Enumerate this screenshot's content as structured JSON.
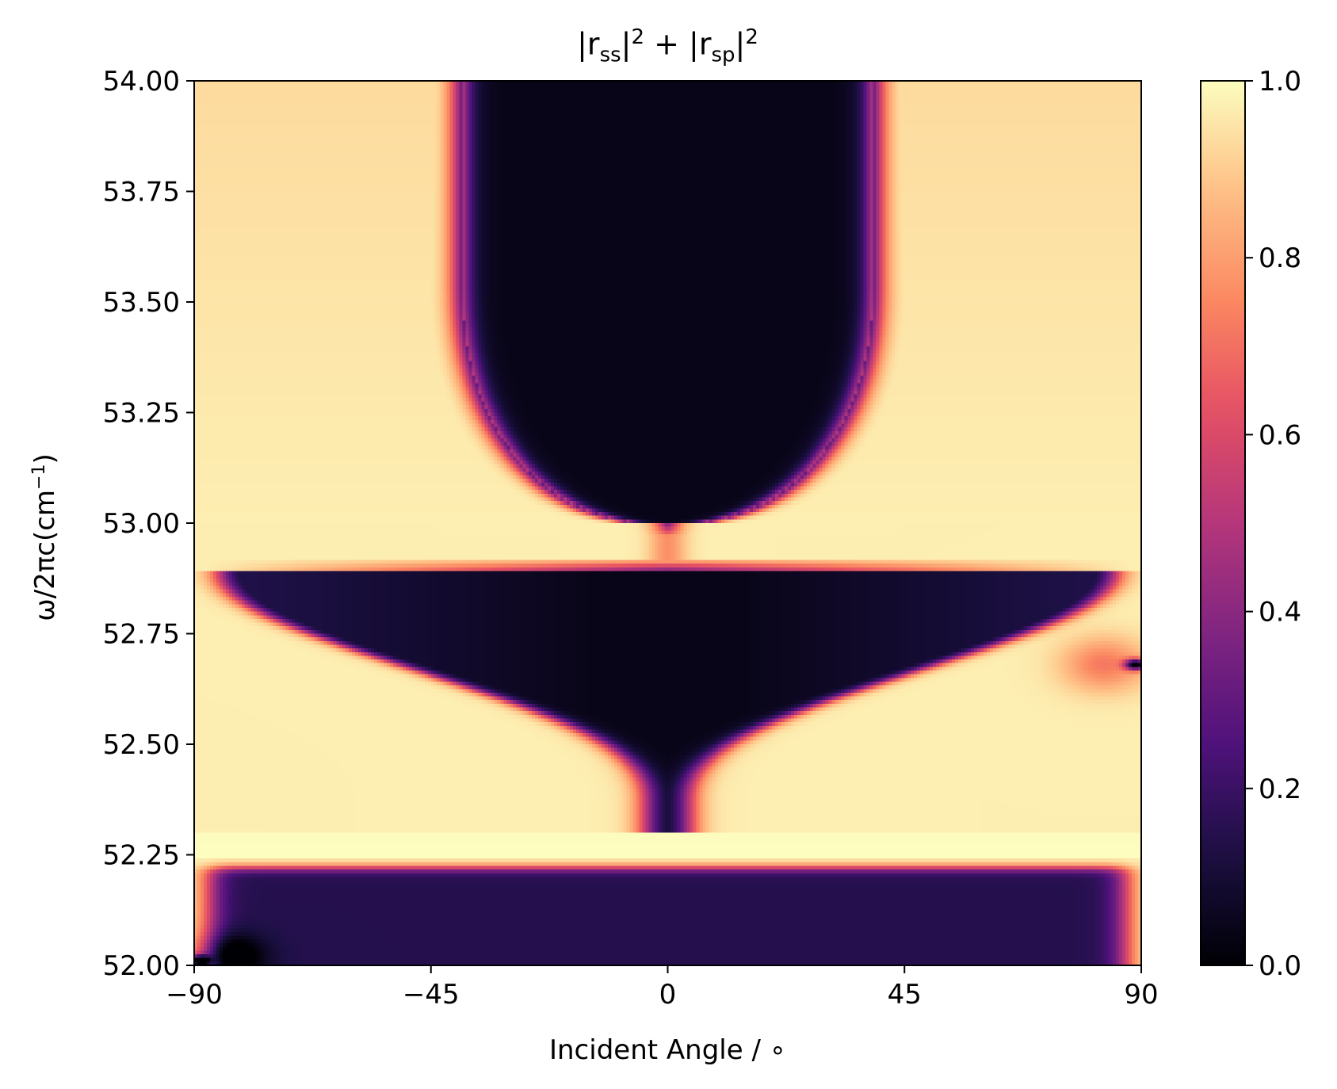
{
  "chart_data": {
    "type": "heatmap",
    "title": "|r_ss|^2 + |r_sp|^2",
    "title_parts": {
      "bar1": "|r",
      "sub1": "ss",
      "bar2": "|",
      "sup1": "2",
      "plus": " + ",
      "bar3": "|r",
      "sub2": "sp",
      "bar4": "|",
      "sup2": "2"
    },
    "xlabel": "Incident Angle / ∘",
    "ylabel_parts": {
      "main": "ω/2πc(cm",
      "sup": "−1",
      "close": ")"
    },
    "xlim": [
      -90,
      90
    ],
    "ylim": [
      52.0,
      54.0
    ],
    "xticks": [
      -90,
      -45,
      0,
      45,
      90
    ],
    "xtick_labels": [
      "−90",
      "−45",
      "0",
      "45",
      "90"
    ],
    "yticks": [
      52.0,
      52.25,
      52.5,
      52.75,
      53.0,
      53.25,
      53.5,
      53.75,
      54.0
    ],
    "ytick_labels": [
      "52.00",
      "52.25",
      "52.50",
      "52.75",
      "53.00",
      "53.25",
      "53.50",
      "53.75",
      "54.00"
    ],
    "colormap": "magma",
    "colorbar": {
      "range": [
        0.0,
        1.0
      ],
      "ticks": [
        0.0,
        0.2,
        0.4,
        0.6,
        0.8,
        1.0
      ],
      "tick_labels": [
        "0.0",
        "0.2",
        "0.4",
        "0.6",
        "0.8",
        "1.0"
      ]
    },
    "regions": [
      {
        "region": "upper reflectivity dip",
        "y_range": [
          53.0,
          54.0
        ],
        "x_range_at_top": [
          -39,
          39
        ],
        "value_min": 0.02
      },
      {
        "region": "middle reflectivity dip",
        "y_range": [
          52.37,
          52.9
        ],
        "x_range_at_top": [
          -85,
          85
        ],
        "value_min": 0.02
      },
      {
        "region": "lower reflectivity dip",
        "y_range": [
          52.0,
          52.22
        ],
        "x_range": [
          -88,
          88
        ],
        "value_min": 0.1
      },
      {
        "region": "narrow dip near grazing angle",
        "x": 88,
        "y": 52.68,
        "value_min": 0.05
      },
      {
        "region": "narrow dip near grazing angle",
        "x": -88,
        "y": 52.02,
        "value_min": 0.05
      }
    ]
  }
}
